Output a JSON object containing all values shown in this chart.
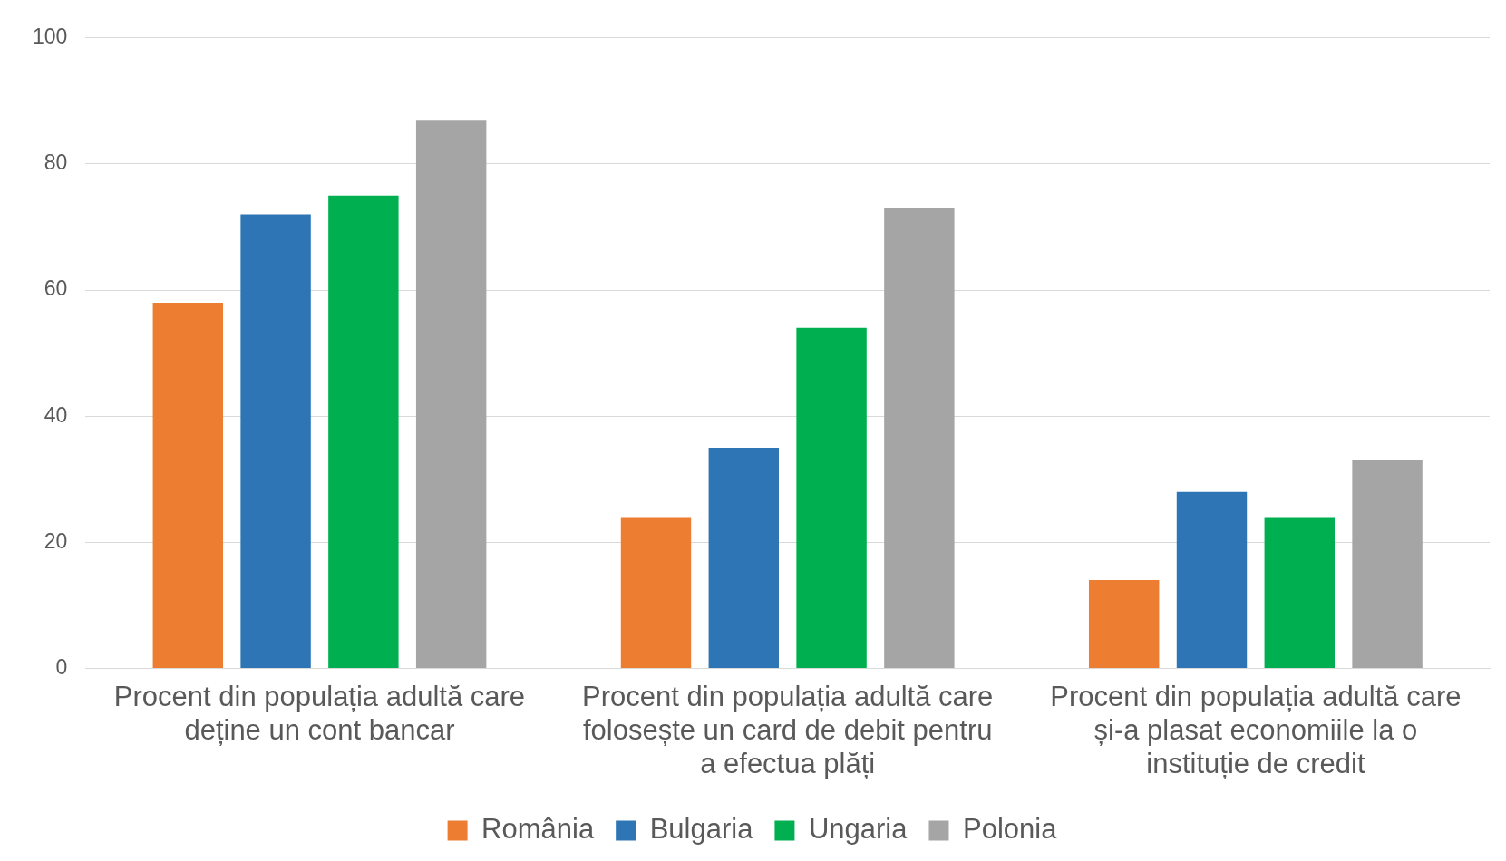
{
  "chart_data": {
    "type": "bar",
    "categories": [
      "Procent din populația adultă care deține un cont bancar",
      "Procent din populația adultă care folosește un card de debit pentru a efectua plăți",
      "Procent din populația adultă care și-a plasat economiile la o instituție de credit"
    ],
    "series": [
      {
        "name": "România",
        "color": "#ed7d31",
        "values": [
          58,
          24,
          14
        ]
      },
      {
        "name": "Bulgaria",
        "color": "#2e75b6",
        "values": [
          72,
          35,
          28
        ]
      },
      {
        "name": "Ungaria",
        "color": "#00b050",
        "values": [
          75,
          54,
          24
        ]
      },
      {
        "name": "Polonia",
        "color": "#a5a5a5",
        "values": [
          87,
          73,
          33
        ]
      }
    ],
    "ylim": [
      0,
      100
    ],
    "yticks": [
      0,
      20,
      40,
      60,
      80,
      100
    ],
    "grid": "y",
    "legend": "bottom"
  }
}
